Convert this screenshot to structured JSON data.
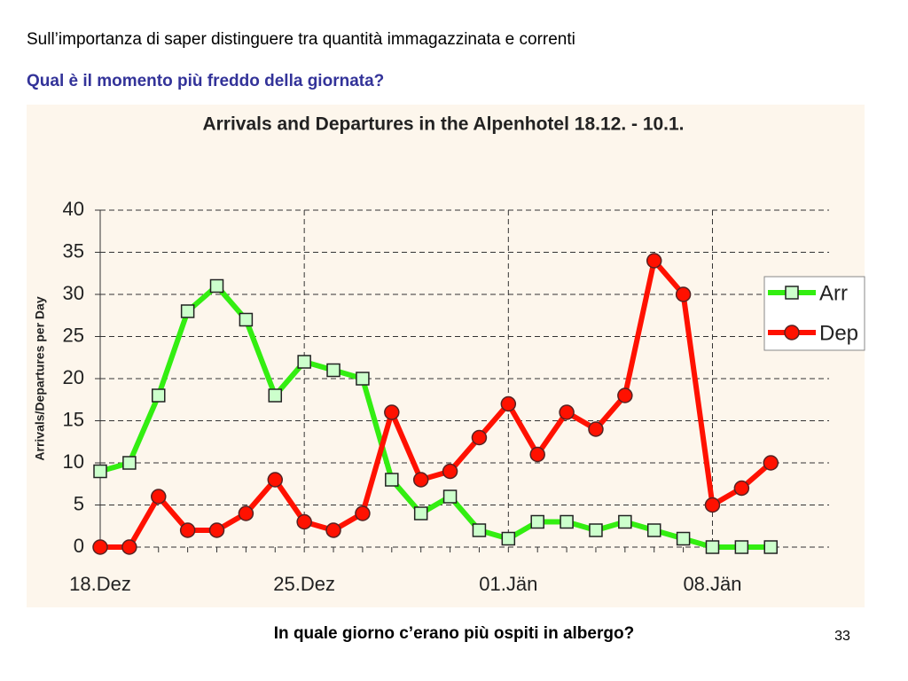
{
  "slide": {
    "heading": "Sull’importanza di saper distinguere tra quantità immagazzinata e correnti",
    "question": "Qual è il momento più freddo della giornata?",
    "footer_question": "In quale giorno c’erano più ospiti in albergo?",
    "page_number": "33"
  },
  "chart_data": {
    "type": "line",
    "title": "Arrivals and Departures in the Alpenhotel 18.12. - 10.1.",
    "y_label": "Arrivals/Departures per Day",
    "categories": [
      "18.Dez",
      null,
      null,
      null,
      null,
      null,
      null,
      "25.Dez",
      null,
      null,
      null,
      null,
      null,
      null,
      "01.Jän",
      null,
      null,
      null,
      null,
      null,
      null,
      "08.Jän",
      null,
      null
    ],
    "series": [
      {
        "name": "Arr",
        "color": "#33ee11",
        "marker": "square",
        "values": [
          9,
          10,
          18,
          28,
          31,
          27,
          18,
          22,
          21,
          20,
          8,
          4,
          6,
          2,
          1,
          3,
          3,
          2,
          3,
          2,
          1,
          0,
          0,
          0
        ]
      },
      {
        "name": "Dep",
        "color": "#ff1100",
        "marker": "circle",
        "values": [
          0,
          0,
          6,
          2,
          2,
          4,
          8,
          3,
          2,
          4,
          16,
          8,
          9,
          13,
          17,
          11,
          16,
          14,
          18,
          34,
          30,
          5,
          7,
          10
        ]
      }
    ],
    "ylim": [
      0,
      40
    ],
    "yticks": [
      0,
      5,
      10,
      15,
      20,
      25,
      30,
      35,
      40
    ],
    "grid": true,
    "legend": "right"
  }
}
